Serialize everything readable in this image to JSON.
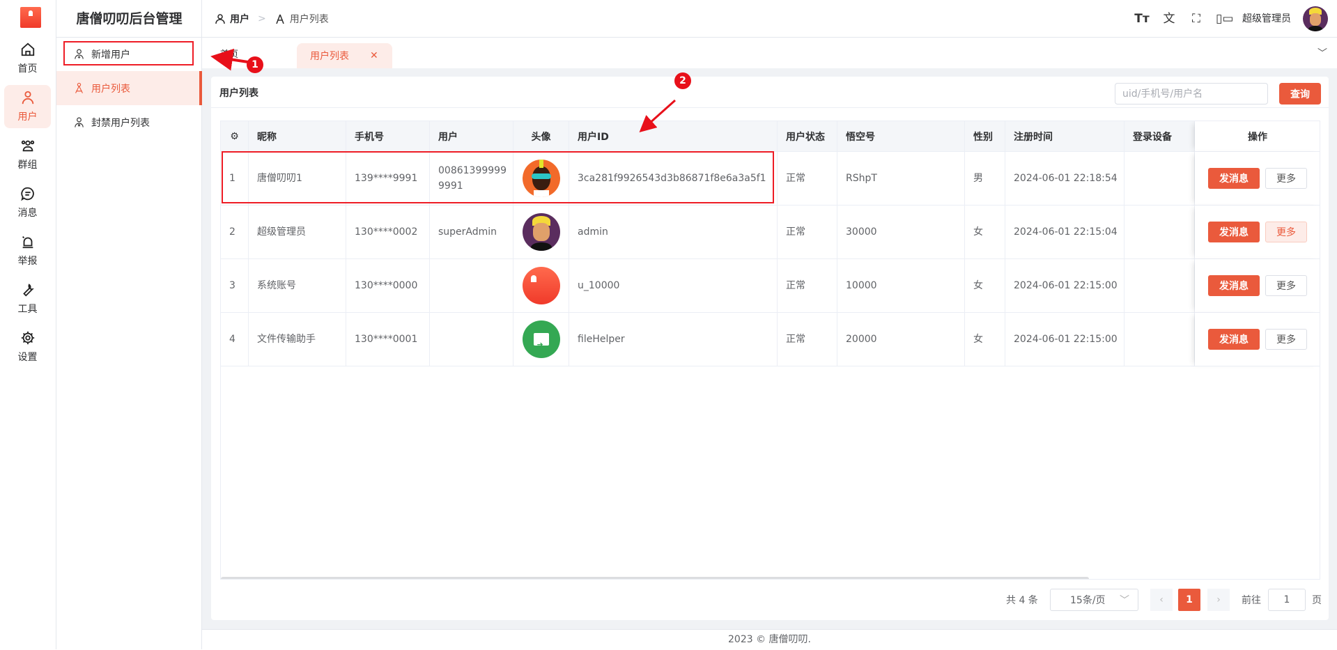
{
  "app": {
    "title": "唐僧叨叨后台管理",
    "accent": "#ea5a3c"
  },
  "rail": [
    {
      "label": "首页",
      "icon": "home-icon"
    },
    {
      "label": "用户",
      "icon": "user-icon",
      "active": true
    },
    {
      "label": "群组",
      "icon": "group-icon"
    },
    {
      "label": "消息",
      "icon": "message-icon"
    },
    {
      "label": "举报",
      "icon": "alarm-icon"
    },
    {
      "label": "工具",
      "icon": "wrench-icon"
    },
    {
      "label": "设置",
      "icon": "gear-icon"
    }
  ],
  "menu": [
    {
      "label": "新增用户",
      "icon": "user-add-icon"
    },
    {
      "label": "用户列表",
      "icon": "users-icon",
      "active": true
    },
    {
      "label": "封禁用户列表",
      "icon": "user-ban-icon"
    }
  ],
  "header": {
    "crumbs": [
      "用户",
      "用户列表"
    ],
    "user": "超级管理员",
    "icons": [
      "font-size-icon",
      "translate-icon",
      "fullscreen-icon",
      "layout-icon"
    ]
  },
  "tabs": {
    "home": "首页",
    "active": "用户列表"
  },
  "card": {
    "title": "用户列表",
    "search_placeholder": "uid/手机号/用户名",
    "query": "查询"
  },
  "table": {
    "columns": [
      "",
      "昵称",
      "手机号",
      "用户",
      "头像",
      "用户ID",
      "用户状态",
      "悟空号",
      "性别",
      "注册时间",
      "登录设备",
      "操作"
    ],
    "rows": [
      {
        "no": "1",
        "nick": "唐僧叨叨1",
        "phone": "139****9991",
        "user": "008613999999991",
        "avatar": "avatar-orange",
        "uid": "3ca281f9926543d3b86871f8e6a3a5f1",
        "status": "正常",
        "wk": "RShpT",
        "sex": "男",
        "time": "2024-06-01 22:18:54",
        "device": ""
      },
      {
        "no": "2",
        "nick": "超级管理员",
        "phone": "130****0002",
        "user": "superAdmin",
        "avatar": "avatar-purple",
        "uid": "admin",
        "status": "正常",
        "wk": "30000",
        "sex": "女",
        "time": "2024-06-01 22:15:04",
        "device": ""
      },
      {
        "no": "3",
        "nick": "系统账号",
        "phone": "130****0000",
        "user": "",
        "avatar": "avatar-red",
        "uid": "u_10000",
        "status": "正常",
        "wk": "10000",
        "sex": "女",
        "time": "2024-06-01 22:15:00",
        "device": ""
      },
      {
        "no": "4",
        "nick": "文件传输助手",
        "phone": "130****0001",
        "user": "",
        "avatar": "avatar-green",
        "uid": "fileHelper",
        "status": "正常",
        "wk": "20000",
        "sex": "女",
        "time": "2024-06-01 22:15:00",
        "device": ""
      }
    ],
    "send": "发消息",
    "more": "更多"
  },
  "pagination": {
    "total": "共 4 条",
    "size": "15条/页",
    "page": "1",
    "goto": "前往",
    "goto_value": "1",
    "page_suffix": "页"
  },
  "footer": "2023 © 唐僧叨叨.",
  "annotations": [
    "1",
    "2"
  ]
}
